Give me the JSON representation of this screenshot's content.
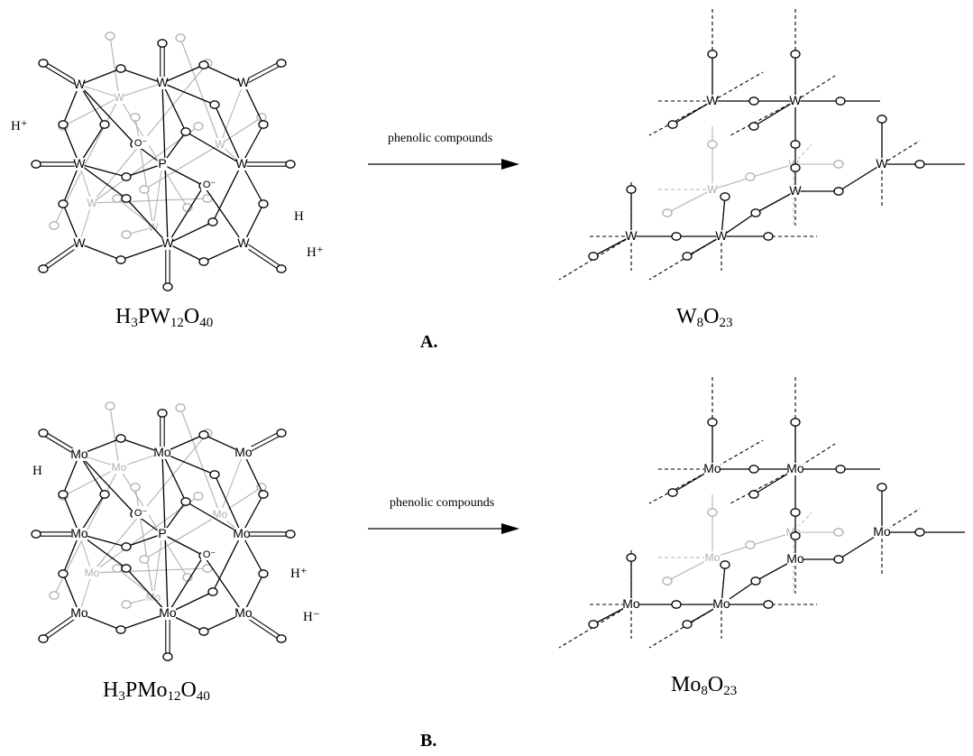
{
  "panels": [
    {
      "id": "A",
      "label": "A.",
      "reactant": {
        "base": [
          "H",
          "3",
          "PW",
          "12",
          "O",
          "40"
        ]
      },
      "product": {
        "base": [
          "W",
          "8",
          "O",
          "23"
        ]
      },
      "arrow_label": "phenolic compounds",
      "metal": "W",
      "stray_labels": [
        "H⁺",
        "H",
        "H⁺"
      ]
    },
    {
      "id": "B",
      "label": "B.",
      "reactant": {
        "base": [
          "H",
          "3",
          "PMo",
          "12",
          "O",
          "40"
        ]
      },
      "product": {
        "base": [
          "Mo",
          "8",
          "O",
          "23"
        ]
      },
      "arrow_label": "phenolic compounds",
      "metal": "Mo",
      "stray_labels": [
        "H",
        "H⁺",
        "H⁻"
      ]
    }
  ],
  "atoms": {
    "oxygen": "O",
    "phosphorus": "P",
    "o_minus": "O⁻"
  },
  "colors": {
    "front": "#000000",
    "back": "#b0b0b0"
  }
}
